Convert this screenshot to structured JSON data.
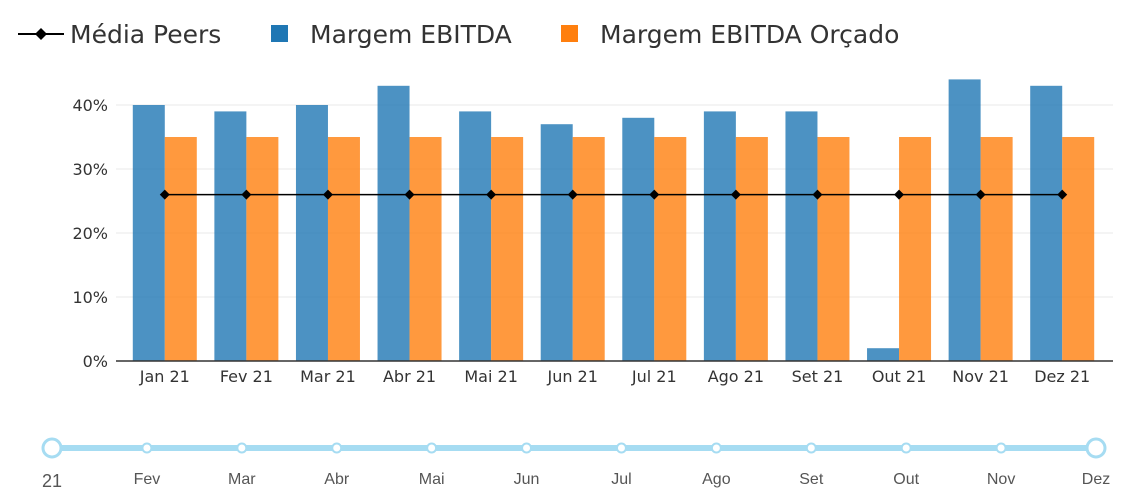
{
  "chart_data": {
    "type": "bar",
    "categories": [
      "Jan 21",
      "Fev 21",
      "Mar 21",
      "Abr 21",
      "Mai 21",
      "Jun 21",
      "Jul 21",
      "Ago 21",
      "Set 21",
      "Out 21",
      "Nov 21",
      "Dez 21"
    ],
    "series": [
      {
        "name": "Margem EBITDA",
        "type": "bar",
        "color": "#1f77b4",
        "values": [
          40,
          39,
          40,
          43,
          39,
          37,
          38,
          39,
          39,
          2,
          44,
          43
        ]
      },
      {
        "name": "Margem EBITDA Orçado",
        "type": "bar",
        "color": "#ff7f0e",
        "values": [
          35,
          35,
          35,
          35,
          35,
          35,
          35,
          35,
          35,
          35,
          35,
          35
        ]
      },
      {
        "name": "Média Peers",
        "type": "line",
        "color": "#000000",
        "values": [
          26,
          26,
          26,
          26,
          26,
          26,
          26,
          26,
          26,
          26,
          26,
          26
        ]
      }
    ],
    "yticks": [
      "0%",
      "10%",
      "20%",
      "30%",
      "40%"
    ],
    "ylim": [
      0,
      44
    ],
    "grid": true,
    "legend_position": "top-left"
  },
  "slider": {
    "first_label": "21",
    "labels": [
      "Fev",
      "Mar",
      "Abr",
      "Mai",
      "Jun",
      "Jul",
      "Ago",
      "Set",
      "Out",
      "Nov",
      "Dez"
    ],
    "range": [
      "Jan 21",
      "Dez 21"
    ],
    "color": "#a6dcf2"
  }
}
